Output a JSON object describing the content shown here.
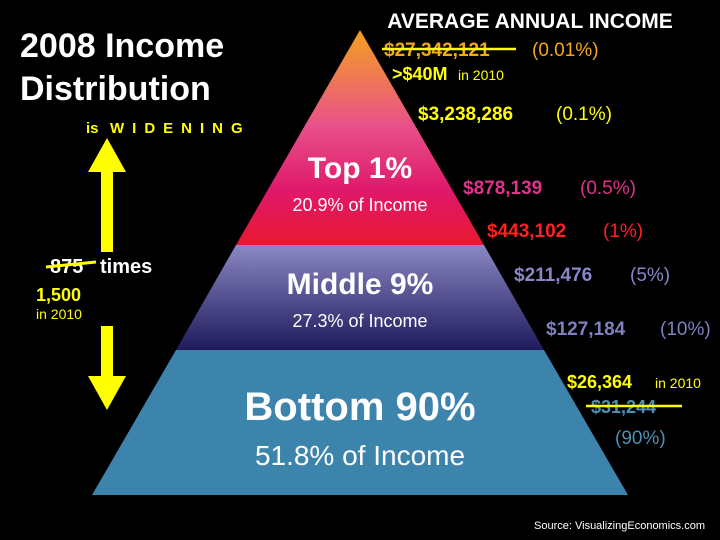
{
  "title": {
    "line1": "2008 Income",
    "line2": "Distribution"
  },
  "subtitle": {
    "prefix": "is",
    "word": "WIDENING"
  },
  "ratio": {
    "old": "875",
    "unit": "times",
    "new": "1,500",
    "new_note": "in 2010"
  },
  "header": "AVERAGE ANNUAL INCOME",
  "tiers": [
    {
      "name": "Top 1%",
      "share": "20.9% of Income"
    },
    {
      "name": "Middle 9%",
      "share": "27.3% of Income"
    },
    {
      "name": "Bottom 90%",
      "share": "51.8% of Income"
    }
  ],
  "incomes": [
    {
      "amount": "$27,342,121",
      "group": "(0.01%)"
    },
    {
      "amount": ">$40M",
      "note": "in 2010"
    },
    {
      "amount": "$3,238,286",
      "group": "(0.1%)"
    },
    {
      "amount": "$878,139",
      "group": "(0.5%)"
    },
    {
      "amount": "$443,102",
      "group": "(1%)"
    },
    {
      "amount": "$211,476",
      "group": "(5%)"
    },
    {
      "amount": "$127,184",
      "group": "(10%)"
    },
    {
      "amount": "$26,364",
      "note": "in 2010"
    },
    {
      "amount": "$31,244",
      "group": "(90%)"
    }
  ],
  "source": "Source: VisualizingEconomics.com"
}
